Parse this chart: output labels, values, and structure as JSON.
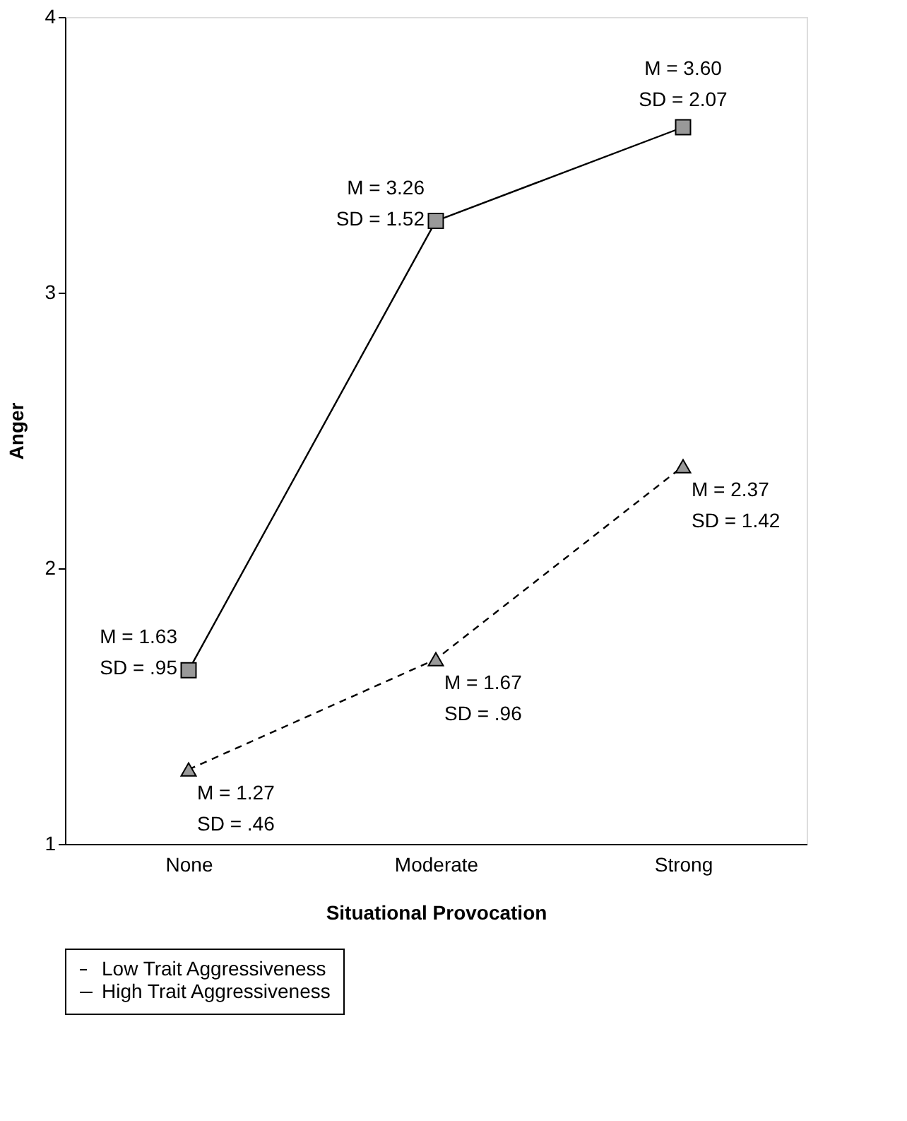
{
  "chart_data": {
    "type": "line",
    "xlabel": "Situational Provocation",
    "ylabel": "Anger",
    "categories": [
      "None",
      "Moderate",
      "Strong"
    ],
    "series": [
      {
        "name": "Low Trait Aggressiveness",
        "color": "#000000",
        "values": [
          1.27,
          1.67,
          2.37
        ],
        "marker": "triangle",
        "line_style": "dashed"
      },
      {
        "name": "High Trait Aggressiveness",
        "color": "#000000",
        "values": [
          1.63,
          3.26,
          3.6
        ],
        "marker": "square",
        "line_style": "solid"
      }
    ],
    "ylim": [
      1,
      4
    ],
    "yticks": [
      1,
      2,
      3,
      4
    ],
    "grid": false,
    "legend": "bottom",
    "annotations": [
      {
        "text": "M = 1.63\nSD = .95",
        "x": "None",
        "y": 1.63
      },
      {
        "text": "M = 3.26\nSD = 1.52",
        "x": "Moderate",
        "y": 3.26
      },
      {
        "text": "M = 3.60\nSD = 2.07",
        "x": "Strong",
        "y": 3.6
      },
      {
        "text": "M = 1.27\nSD = .46",
        "x": "None",
        "y": 1.27
      },
      {
        "text": "M = 1.67\nSD = .96",
        "x": "Moderate",
        "y": 1.67
      },
      {
        "text": "M = 2.37\nSD = 1.42",
        "x": "Strong",
        "y": 2.37
      }
    ]
  }
}
